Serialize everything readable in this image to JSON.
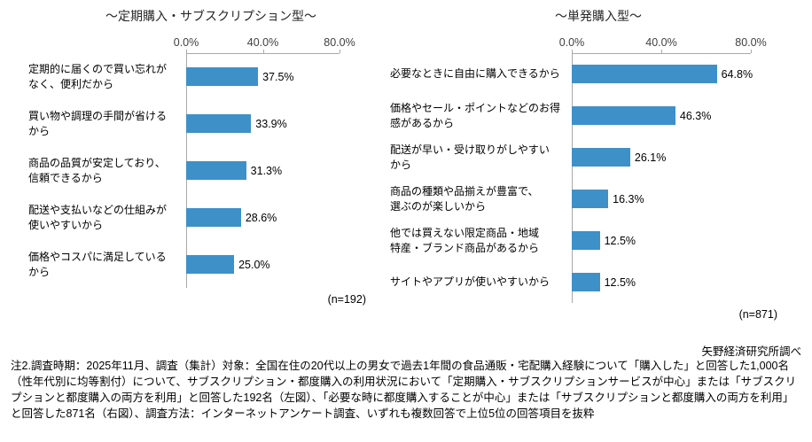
{
  "chart_data": [
    {
      "type": "bar",
      "orientation": "horizontal",
      "title": "～定期購入・サブスクリプション型～",
      "categories": [
        "定期的に届くので買い忘れが\nなく、便利だから",
        "買い物や調理の手間が省ける\nから",
        "商品の品質が安定しており、\n信頼できるから",
        "配送や支払いなどの仕組みが\n使いやすいから",
        "価格やコスパに満足している\nから"
      ],
      "values": [
        37.5,
        33.9,
        31.3,
        28.6,
        25.0
      ],
      "value_labels": [
        "37.5%",
        "33.9%",
        "31.3%",
        "28.6%",
        "25.0%"
      ],
      "xlim": [
        0,
        80
      ],
      "x_tick_positions": [
        0,
        40,
        80
      ],
      "x_tick_labels": [
        "0.0%",
        "40.0%",
        "80.0%"
      ],
      "sample_label": "(n=192)",
      "bar_color": "#3E90C8",
      "legend": "none",
      "grid": "off"
    },
    {
      "type": "bar",
      "orientation": "horizontal",
      "title": "～単発購入型～",
      "categories": [
        "必要なときに自由に購入できるから",
        "価格やセール・ポイントなどのお得\n感があるから",
        "配送が早い・受け取りがしやすい\nから",
        "商品の種類や品揃えが豊富で、\n選ぶのが楽しいから",
        "他では買えない限定商品・地域\n特産・ブランド商品があるから",
        "サイトやアプリが使いやすいから"
      ],
      "values": [
        64.8,
        46.3,
        26.1,
        16.3,
        12.5,
        12.5
      ],
      "value_labels": [
        "64.8%",
        "46.3%",
        "26.1%",
        "16.3%",
        "12.5%",
        "12.5%"
      ],
      "xlim": [
        0,
        80
      ],
      "x_tick_positions": [
        0,
        40,
        80
      ],
      "x_tick_labels": [
        "0.0%",
        "40.0%",
        "80.0%"
      ],
      "sample_label": "(n=871)",
      "bar_color": "#3E90C8",
      "legend": "none",
      "grid": "off"
    }
  ],
  "footer": {
    "source": "矢野経済研究所調べ",
    "note": "注2.調査時期：2025年11月、調査（集計）対象：全国在住の20代以上の男女で過去1年間の食品通販・宅配購入経験について「購入した」と回答した1,000名（性年代別に均等割付）について、サブスクリプション・都度購入の利用状況において「定期購入・サブスクリプションサービスが中心」または「サブスクリプションと都度購入の両方を利用」と回答した192名（左図）、「必要な時に都度購入することが中心」または「サブスクリプションと都度購入の両方を利用」と回答した871名（右図）、調査方法：インターネットアンケート調査、いずれも複数回答で上位5位の回答項目を抜粋"
  }
}
